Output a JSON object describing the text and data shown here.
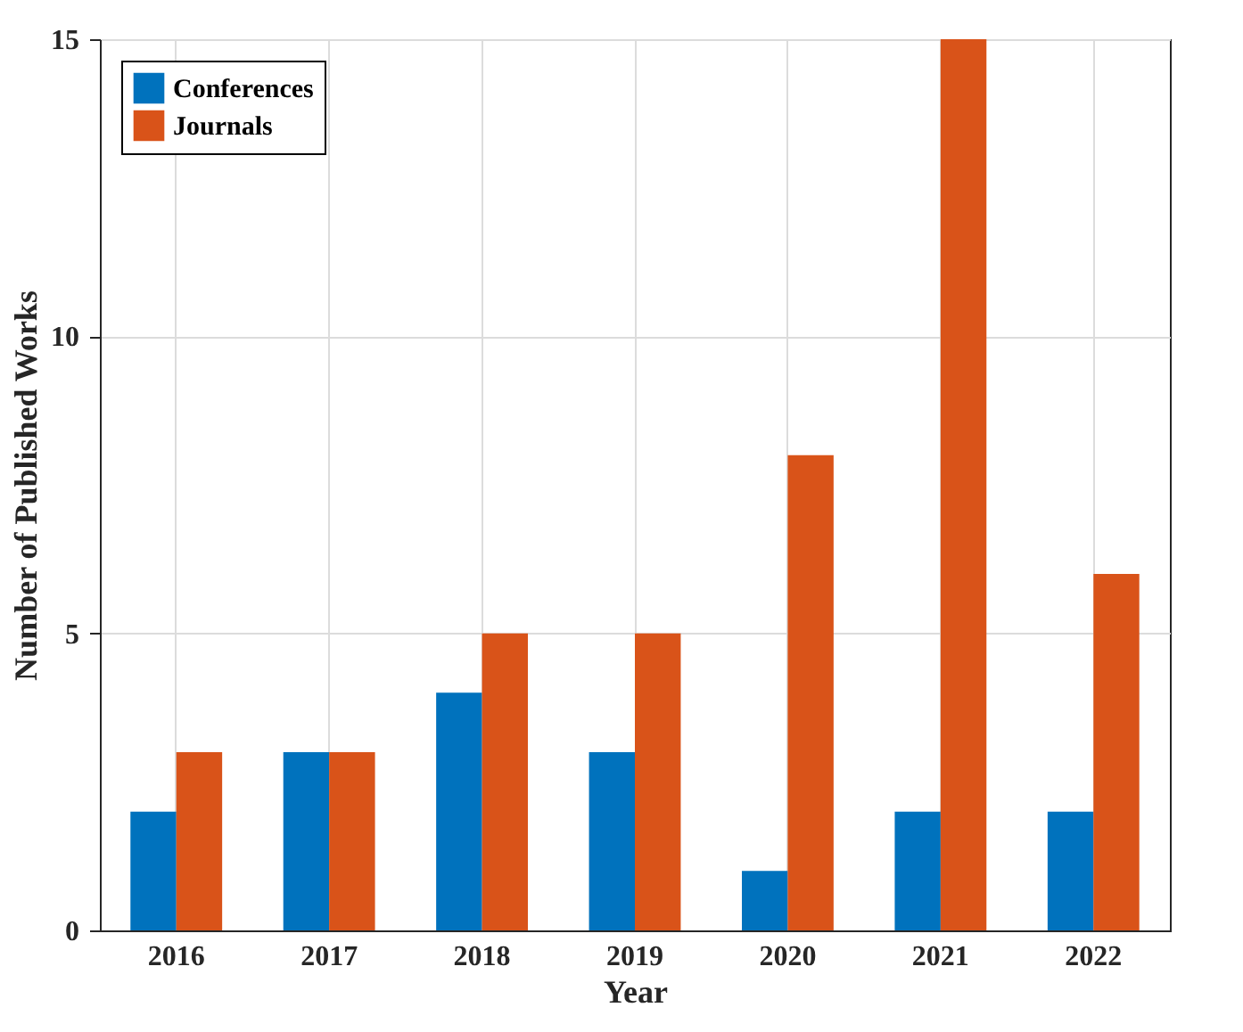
{
  "chart_data": {
    "type": "bar",
    "xlabel": "Year",
    "ylabel": "Number of Published Works",
    "categories": [
      "2016",
      "2017",
      "2018",
      "2019",
      "2020",
      "2021",
      "2022"
    ],
    "series": [
      {
        "name": "Conferences",
        "color": "#0072bd",
        "values": [
          2,
          3,
          4,
          3,
          1,
          2,
          2
        ]
      },
      {
        "name": "Journals",
        "color": "#d95319",
        "values": [
          3,
          3,
          5,
          5,
          8,
          15,
          6
        ]
      }
    ],
    "ylim": [
      0,
      15
    ],
    "yticks": [
      0,
      5,
      10,
      15
    ],
    "grid": true,
    "legend": "top left"
  }
}
